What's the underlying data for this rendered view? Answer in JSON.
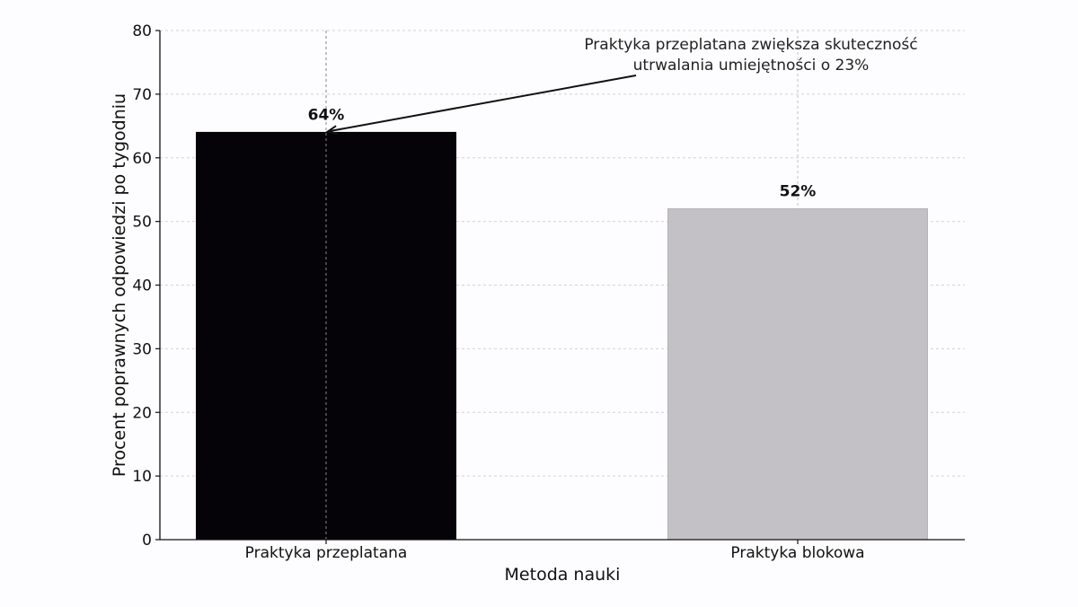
{
  "chart_data": {
    "type": "bar",
    "title": "",
    "xlabel": "Metoda nauki",
    "ylabel": "Procent poprawnych odpowiedzi po tygodniu",
    "ylim": [
      0,
      80
    ],
    "yticks": [
      0,
      10,
      20,
      30,
      40,
      50,
      60,
      70,
      80
    ],
    "grid": true,
    "categories": [
      "Praktyka przeplatana",
      "Praktyka blokowa"
    ],
    "values": [
      64,
      52
    ],
    "data_labels": [
      "64%",
      "52%"
    ],
    "colors": [
      "#050307",
      "#c3c1c5"
    ],
    "annotation": {
      "line1": "Praktyka przeplatana zwiększa skuteczność",
      "line2": "utrwalania umiejętności o 23%",
      "points_to_category": "Praktyka przeplatana",
      "points_to_value": 64
    }
  }
}
